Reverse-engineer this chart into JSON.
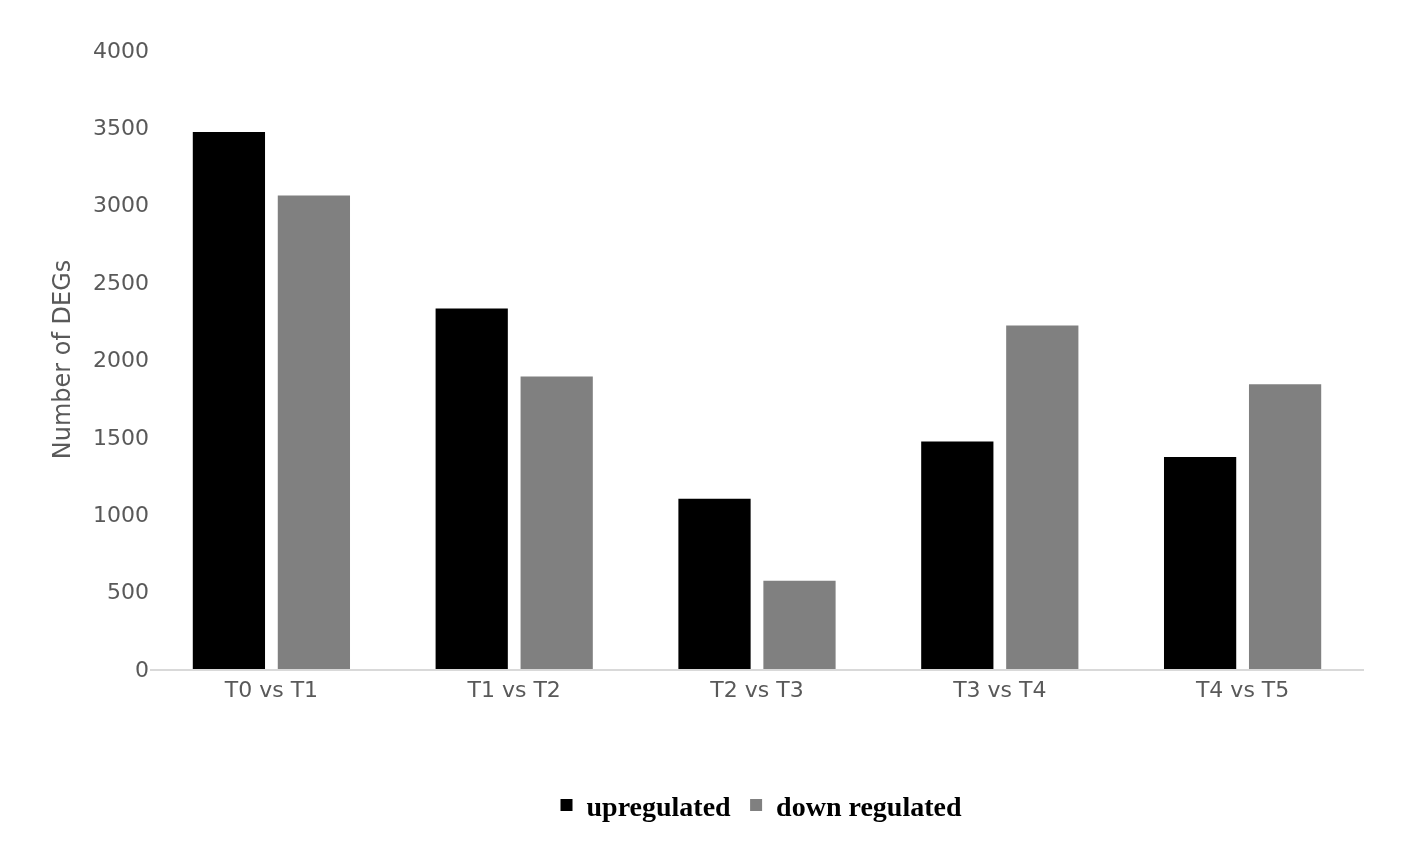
{
  "chart_data": {
    "type": "bar",
    "ylabel": "Number of DEGs",
    "categories": [
      "T0 vs T1",
      "T1 vs T2",
      "T2 vs T3",
      "T3 vs T4",
      "T4 vs T5"
    ],
    "series": [
      {
        "name": "upregulated",
        "color": "#000000",
        "values": [
          3470,
          2330,
          1100,
          1470,
          1370
        ]
      },
      {
        "name": "down regulated",
        "color": "#808080",
        "values": [
          3060,
          1890,
          570,
          2220,
          1840
        ]
      }
    ],
    "ylim": [
      0,
      4000
    ],
    "yticks": [
      0,
      500,
      1000,
      1500,
      2000,
      2500,
      3000,
      3500,
      4000
    ],
    "legend": "bottom"
  }
}
